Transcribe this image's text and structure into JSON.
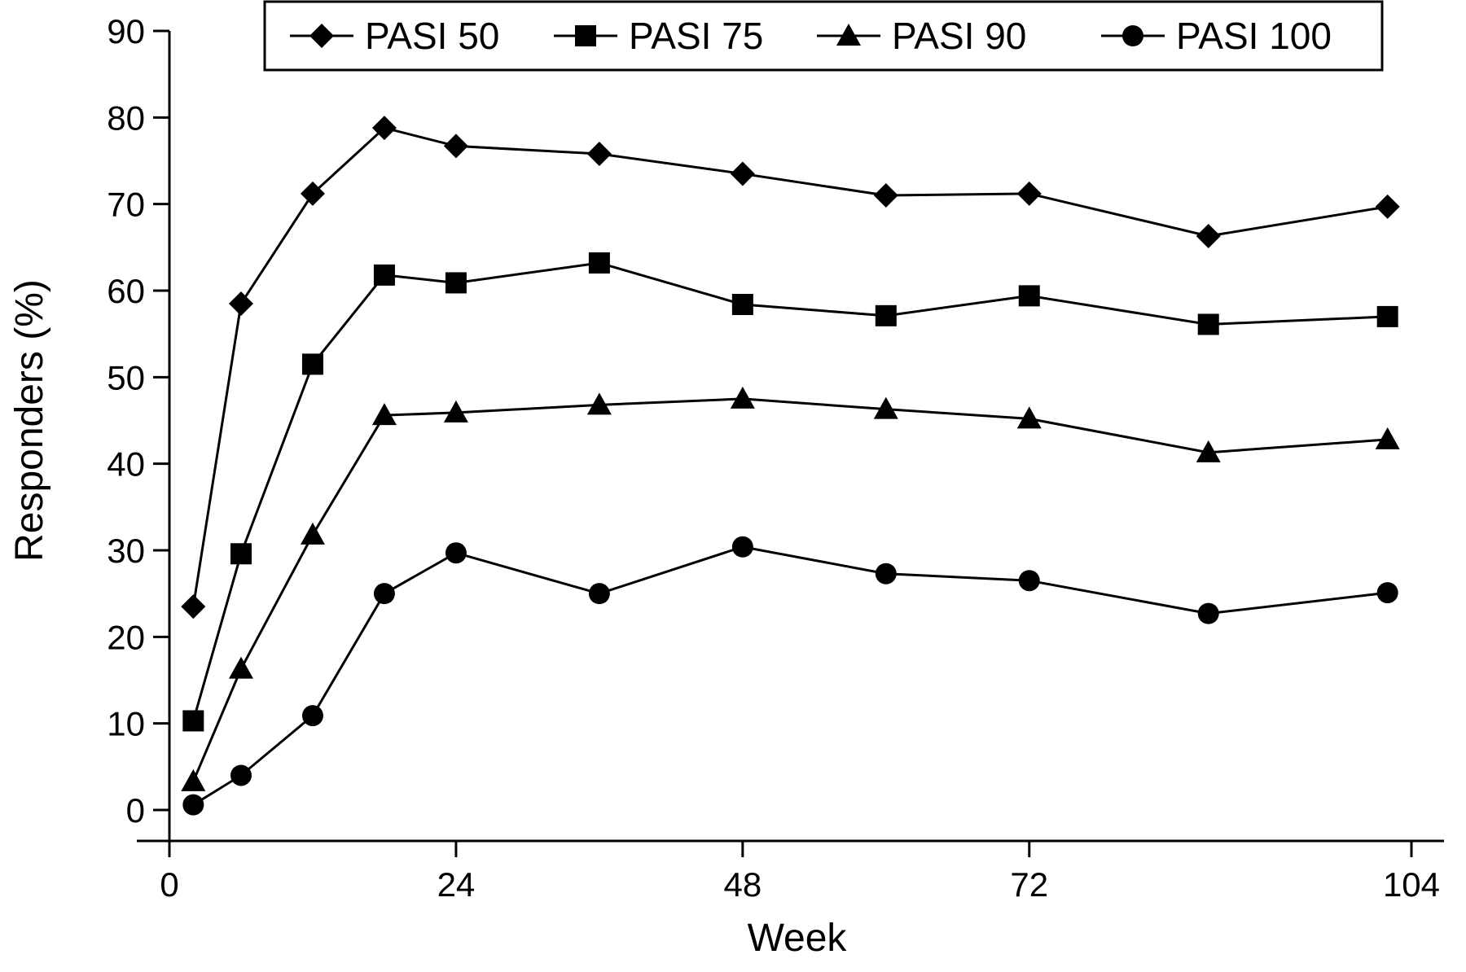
{
  "chart_data": {
    "type": "line",
    "title": "",
    "xlabel": "Week",
    "ylabel": "Responders (%)",
    "xlim": [
      0,
      104
    ],
    "ylim": [
      0,
      90
    ],
    "x_ticks": [
      0,
      24,
      48,
      72,
      104
    ],
    "y_ticks": [
      0,
      10,
      20,
      30,
      40,
      50,
      60,
      70,
      80,
      90
    ],
    "grid": false,
    "legend_position": "top-right",
    "series": [
      {
        "name": "PASI 50",
        "marker": "diamond",
        "x": [
          2,
          6,
          12,
          18,
          24,
          36,
          48,
          60,
          72,
          87,
          102
        ],
        "values": [
          23.5,
          58.5,
          71.2,
          78.8,
          76.7,
          75.8,
          73.5,
          71.0,
          71.2,
          66.3,
          69.7
        ]
      },
      {
        "name": "PASI 75",
        "marker": "square",
        "x": [
          2,
          6,
          12,
          18,
          24,
          36,
          48,
          60,
          72,
          87,
          102
        ],
        "values": [
          10.3,
          29.6,
          51.5,
          61.8,
          60.9,
          63.2,
          58.4,
          57.1,
          59.4,
          56.1,
          57.0
        ]
      },
      {
        "name": "PASI 90",
        "marker": "triangle",
        "x": [
          2,
          6,
          12,
          18,
          24,
          36,
          48,
          60,
          72,
          87,
          102
        ],
        "values": [
          3.3,
          16.3,
          31.8,
          45.6,
          45.9,
          46.8,
          47.5,
          46.3,
          45.2,
          41.3,
          42.8
        ]
      },
      {
        "name": "PASI 100",
        "marker": "circle",
        "x": [
          2,
          6,
          12,
          18,
          24,
          36,
          48,
          60,
          72,
          87,
          102
        ],
        "values": [
          0.6,
          4.0,
          10.9,
          25.0,
          29.7,
          25.0,
          30.4,
          27.3,
          26.5,
          22.7,
          25.1
        ]
      }
    ]
  }
}
